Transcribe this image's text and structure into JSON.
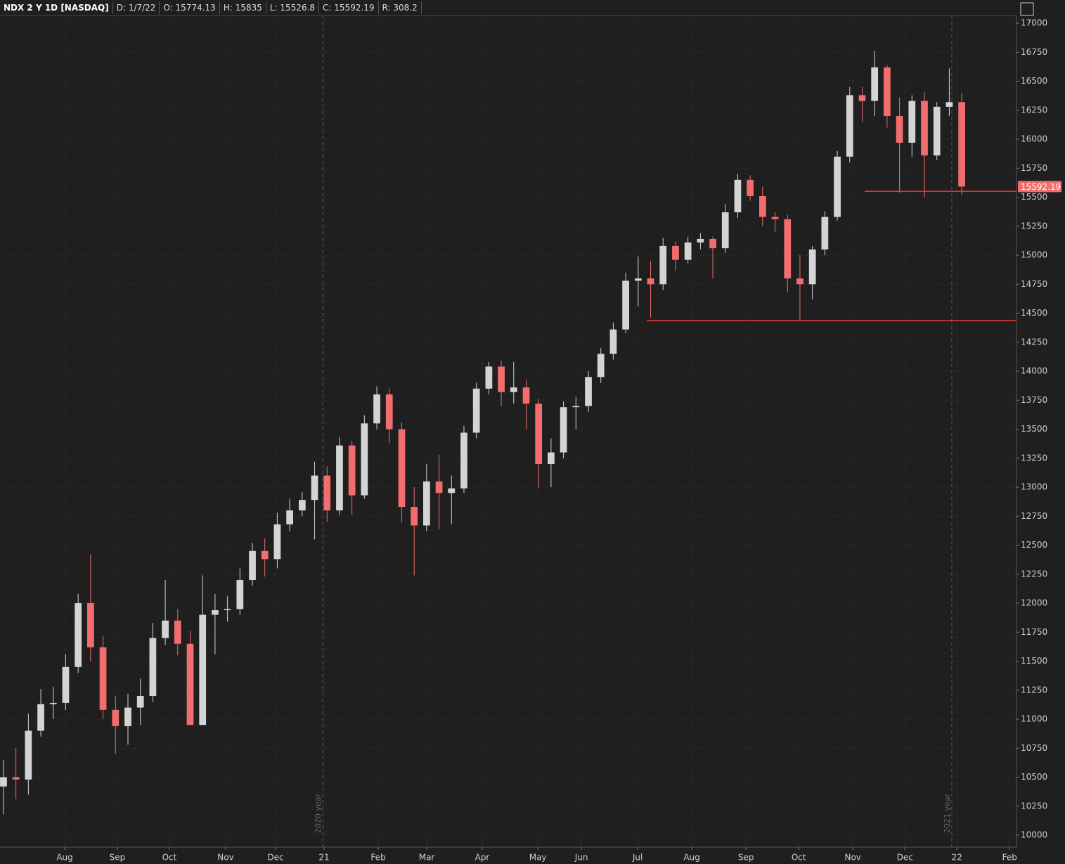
{
  "header": {
    "symbol": "NDX 2 Y 1D [NASDAQ]",
    "date": "D: 1/7/22",
    "open": "O: 15774.13",
    "high": "H: 15835",
    "low": "L: 15526.8",
    "close": "C: 15592.19",
    "range": "R: 308.2"
  },
  "chart_data": {
    "type": "candlestick",
    "open": [
      10420,
      10500,
      10480,
      10900,
      11130,
      11140,
      11450,
      12000,
      11620,
      11080,
      10940,
      11100,
      11200,
      11700,
      11850,
      11650,
      10950,
      11900,
      11940,
      11950,
      12200,
      12450,
      12380,
      12680,
      12800,
      12890,
      13100,
      12800,
      13360,
      12930,
      13550,
      13800,
      13500,
      12830,
      12670,
      13050,
      12950,
      12990,
      13470,
      13850,
      14040,
      13820,
      13860,
      13720,
      13200,
      13300,
      13690,
      13700,
      13950,
      14150,
      14360,
      14780,
      14800,
      14750,
      15080,
      14960,
      15110,
      15140,
      15060,
      15370,
      15650,
      15510,
      15330,
      15310,
      14800,
      14750,
      15050,
      15330,
      15850,
      16380,
      16330,
      16620,
      16200,
      15970,
      16330,
      15860,
      16280,
      16320
    ],
    "high": [
      10650,
      10750,
      11050,
      11260,
      11280,
      11560,
      12080,
      12420,
      11720,
      11200,
      11220,
      11350,
      11830,
      12200,
      11950,
      11760,
      12240,
      12080,
      12060,
      12300,
      12520,
      12560,
      12780,
      12900,
      12960,
      13220,
      13180,
      13430,
      13400,
      13620,
      13870,
      13850,
      13560,
      13000,
      13200,
      13280,
      13100,
      13530,
      13900,
      14080,
      14090,
      14080,
      13930,
      13760,
      13420,
      13740,
      13780,
      14000,
      14200,
      14420,
      14850,
      14990,
      14950,
      15150,
      15120,
      15160,
      15190,
      15160,
      15440,
      15700,
      15690,
      15590,
      15370,
      15350,
      15000,
      15080,
      15380,
      15900,
      16450,
      16450,
      16760,
      16640,
      16360,
      16380,
      16410,
      16320,
      16610,
      16400
    ],
    "low": [
      10180,
      10310,
      10350,
      10850,
      11000,
      11080,
      11400,
      11500,
      11000,
      10700,
      10780,
      10950,
      11150,
      11640,
      11550,
      10960,
      11000,
      11560,
      11840,
      11900,
      12150,
      12230,
      12300,
      12620,
      12750,
      12550,
      12700,
      12760,
      12760,
      12900,
      13500,
      13380,
      12700,
      12240,
      12620,
      12640,
      12680,
      12950,
      13420,
      13800,
      13700,
      13720,
      13500,
      12990,
      13000,
      13250,
      13500,
      13650,
      13900,
      14100,
      14330,
      14560,
      14460,
      14700,
      14870,
      14930,
      15050,
      14800,
      15020,
      15320,
      15470,
      15250,
      15200,
      14680,
      14435,
      14620,
      15000,
      15300,
      15800,
      16150,
      16200,
      16100,
      15540,
      15850,
      15500,
      15820,
      16200,
      15520
    ],
    "close": [
      10500,
      10480,
      10900,
      11130,
      11140,
      11450,
      12000,
      11620,
      11080,
      10940,
      11100,
      11200,
      11700,
      11850,
      11650,
      10950,
      11900,
      11940,
      11950,
      12200,
      12450,
      12380,
      12680,
      12800,
      12890,
      13100,
      12800,
      13360,
      12930,
      13550,
      13800,
      13500,
      12830,
      12670,
      13050,
      12950,
      12990,
      13470,
      13850,
      14040,
      13820,
      13860,
      13720,
      13200,
      13300,
      13690,
      13700,
      13950,
      14150,
      14360,
      14780,
      14800,
      14750,
      15080,
      14960,
      15110,
      15140,
      15060,
      15370,
      15650,
      15510,
      15330,
      15310,
      14800,
      14750,
      15050,
      15330,
      15850,
      16380,
      16330,
      16620,
      16200,
      15970,
      16330,
      15860,
      16280,
      16320,
      15592.19
    ],
    "up_color": "#d4d4d4",
    "down_color": "#f26d6d",
    "xlim": [
      -0.28,
      81.4
    ],
    "xticks": [
      {
        "value": 4.92,
        "label": "Aug"
      },
      {
        "value": 9.15,
        "label": "Sep"
      },
      {
        "value": 13.33,
        "label": "Oct"
      },
      {
        "value": 17.85,
        "label": "Nov"
      },
      {
        "value": 21.86,
        "label": "Dec"
      },
      {
        "value": 25.76,
        "label": "21"
      },
      {
        "value": 30.11,
        "label": "Feb"
      },
      {
        "value": 34.01,
        "label": "Mar"
      },
      {
        "value": 38.47,
        "label": "Apr"
      },
      {
        "value": 42.94,
        "label": "May"
      },
      {
        "value": 46.44,
        "label": "Jun"
      },
      {
        "value": 50.96,
        "label": "Jul"
      },
      {
        "value": 55.31,
        "label": "Aug"
      },
      {
        "value": 59.66,
        "label": "Sep"
      },
      {
        "value": 63.9,
        "label": "Oct"
      },
      {
        "value": 68.25,
        "label": "Nov"
      },
      {
        "value": 72.43,
        "label": "Dec"
      },
      {
        "value": 76.61,
        "label": "22"
      },
      {
        "value": 80.85,
        "label": "Feb"
      }
    ],
    "ylim": [
      9897,
      17067
    ],
    "yticks": [
      10000,
      10250,
      10500,
      10750,
      11000,
      11250,
      11500,
      11750,
      12000,
      12250,
      12500,
      12750,
      13000,
      13250,
      13500,
      13750,
      14000,
      14250,
      14500,
      14750,
      15000,
      15250,
      15500,
      15750,
      16000,
      16250,
      16500,
      16750,
      17000
    ],
    "grid": true,
    "year_markers": [
      {
        "value": 25.65,
        "label": "2020 year"
      },
      {
        "value": 76.2,
        "label": "2021 year"
      }
    ],
    "hlines": [
      {
        "value": 14435,
        "from": 51.7,
        "color": "#f23b3b"
      },
      {
        "value": 15551,
        "from": 69.2,
        "color": "#f23b3b"
      }
    ],
    "last_price": 15592.19
  }
}
